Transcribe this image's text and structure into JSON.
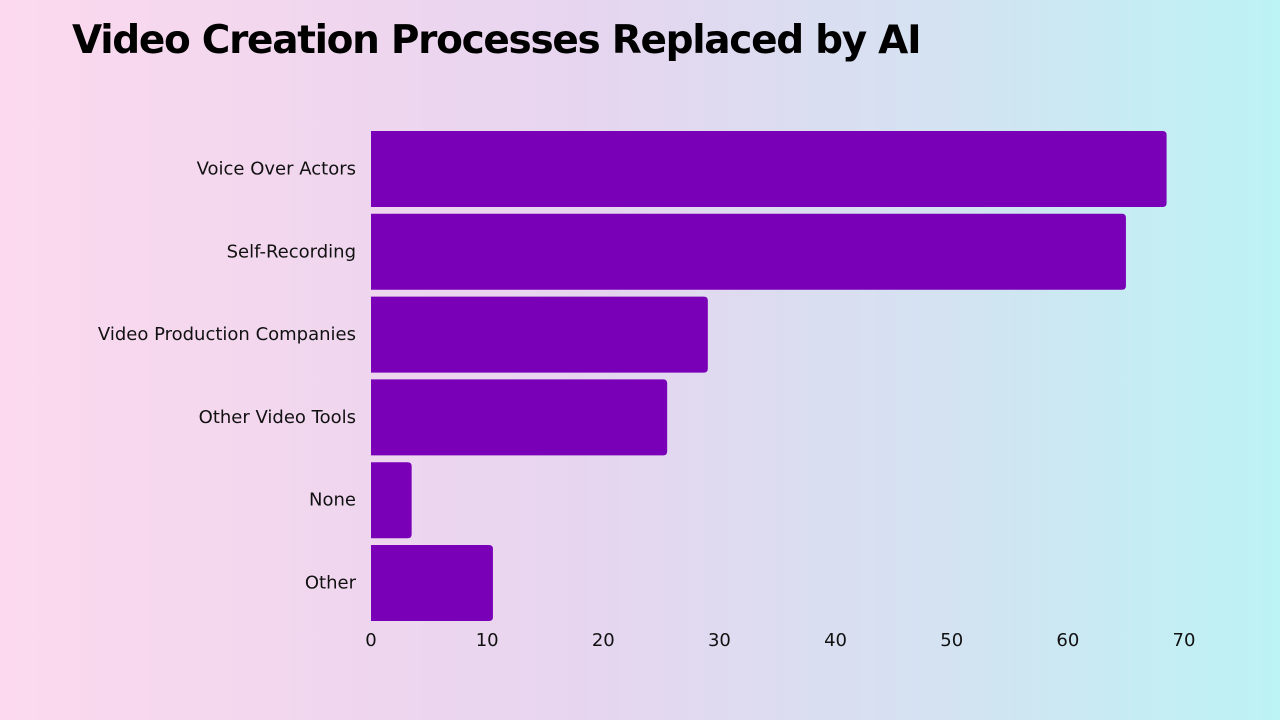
{
  "colors": {
    "bar": "#7a00b8",
    "text": "#111111"
  },
  "chart_data": {
    "type": "bar",
    "orientation": "horizontal",
    "title": "Video Creation Processes Replaced by AI",
    "xlabel": "",
    "ylabel": "",
    "categories": [
      "Voice Over Actors",
      "Self-Recording",
      "Video Production Companies",
      "Other Video Tools",
      "None",
      "Other"
    ],
    "values": [
      68.5,
      65,
      29,
      25.5,
      3.5,
      10.5
    ],
    "xlim": [
      0,
      70
    ],
    "xticks": [
      0,
      10,
      20,
      30,
      40,
      50,
      60,
      70
    ],
    "grid": false,
    "legend": "none"
  }
}
